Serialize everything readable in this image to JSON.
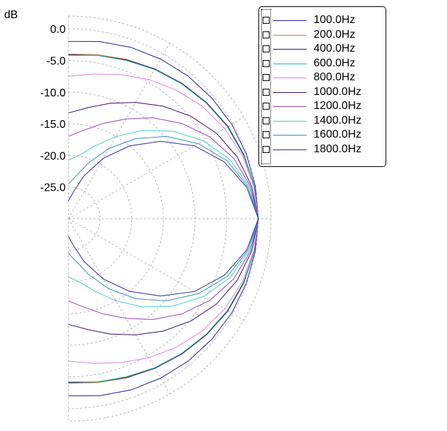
{
  "chart_data": {
    "type": "polar",
    "radial_unit": "dB",
    "radial_ticks": [
      "0.0",
      "-5.0",
      "-10.0",
      "-15.0",
      "-20.0",
      "-25.0"
    ],
    "radial_tick_values": [
      0,
      -5,
      -10,
      -15,
      -20,
      -25
    ],
    "radial_range": [
      -30,
      2
    ],
    "angular_range_deg": [
      -90,
      90
    ],
    "grid": true,
    "legend_position": "top-right",
    "series": [
      {
        "name": "100.0Hz",
        "color": "#1f1f9e",
        "values": [
          0.0,
          -0.05,
          -0.1,
          -0.2,
          -0.4,
          -0.6,
          -0.9,
          -1.2,
          -1.6,
          -2.0
        ]
      },
      {
        "name": "200.0Hz",
        "color": "#c8822a",
        "values": [
          0.0,
          -0.2,
          -0.5,
          -0.9,
          -1.5,
          -2.1,
          -2.7,
          -3.2,
          -3.7,
          -4.0
        ]
      },
      {
        "name": "400.0Hz",
        "color": "#3a0a7a",
        "values": [
          0.0,
          -0.2,
          -0.5,
          -0.9,
          -1.5,
          -2.1,
          -2.7,
          -3.3,
          -3.8,
          -4.1
        ]
      },
      {
        "name": "600.0Hz",
        "color": "#1fbf8f",
        "values": [
          0.0,
          -0.2,
          -0.6,
          -1.0,
          -1.6,
          -2.2,
          -2.8,
          -3.4,
          -3.8,
          -4.2
        ]
      },
      {
        "name": "800.0Hz",
        "color": "#e080e0",
        "values": [
          0.0,
          -0.3,
          -0.8,
          -1.5,
          -2.4,
          -3.5,
          -4.6,
          -5.8,
          -6.8,
          -7.5
        ]
      },
      {
        "name": "1000.0Hz",
        "color": "#3a0a6e",
        "values": [
          0.0,
          -0.6,
          -1.6,
          -3.0,
          -4.8,
          -6.8,
          -8.8,
          -10.6,
          -12.2,
          -13.3
        ]
      },
      {
        "name": "1200.0Hz",
        "color": "#9a40c8",
        "values": [
          0.0,
          -0.8,
          -2.2,
          -4.2,
          -6.6,
          -9.2,
          -11.8,
          -14.0,
          -15.8,
          -17.0
        ]
      },
      {
        "name": "1400.0Hz",
        "color": "#40d0c0",
        "values": [
          0.0,
          -1.0,
          -2.8,
          -5.4,
          -8.5,
          -11.8,
          -15.0,
          -17.8,
          -19.8,
          -20.8
        ]
      },
      {
        "name": "1600.0Hz",
        "color": "#2a8ec8",
        "values": [
          0.0,
          -1.2,
          -3.3,
          -6.3,
          -9.8,
          -13.5,
          -17.2,
          -20.6,
          -23.2,
          -24.5
        ]
      },
      {
        "name": "1800.0Hz",
        "color": "#2a2aa0",
        "values": [
          0.0,
          -1.4,
          -3.8,
          -7.0,
          -11.0,
          -15.0,
          -19.0,
          -22.8,
          -25.8,
          -27.2
        ]
      }
    ],
    "angles_deg": [
      0,
      10,
      20,
      30,
      40,
      50,
      60,
      70,
      80,
      90
    ]
  }
}
